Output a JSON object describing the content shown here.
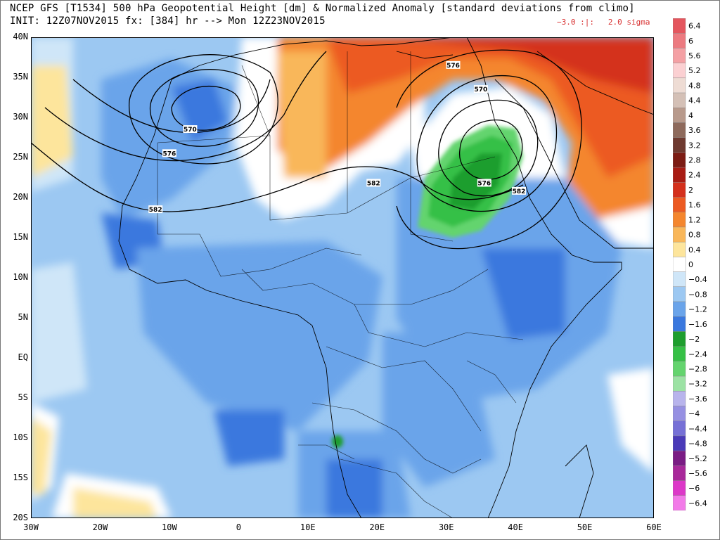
{
  "header": {
    "line1": "NCEP GFS [T1534] 500 hPa Geopotential Height [dm] & Normalized Anomaly [standard deviations from climo]",
    "line2": "INIT: 12Z07NOV2015 fx: [384] hr --> Mon 12Z23NOV2015",
    "sigma_note": "−3.0 :|:   2.0 sigma"
  },
  "axes": {
    "lat_labels": [
      "40N",
      "35N",
      "30N",
      "25N",
      "20N",
      "15N",
      "10N",
      "5N",
      "EQ",
      "5S",
      "10S",
      "15S",
      "20S"
    ],
    "lat_values": [
      40,
      35,
      30,
      25,
      20,
      15,
      10,
      5,
      0,
      -5,
      -10,
      -15,
      -20
    ],
    "lon_labels": [
      "30W",
      "20W",
      "10W",
      "0",
      "10E",
      "20E",
      "30E",
      "40E",
      "50E",
      "60E"
    ],
    "lon_values": [
      -30,
      -20,
      -10,
      0,
      10,
      20,
      30,
      40,
      50,
      60
    ]
  },
  "map_extent": {
    "lon_min": -30,
    "lon_max": 60,
    "lat_min": -20,
    "lat_max": 40
  },
  "contour_labels": [
    {
      "text": "570",
      "lon": -7,
      "lat": 28.5
    },
    {
      "text": "576",
      "lon": -10,
      "lat": 25.5
    },
    {
      "text": "582",
      "lon": -12,
      "lat": 18.5
    },
    {
      "text": "582",
      "lon": 19.5,
      "lat": 21.8
    },
    {
      "text": "576",
      "lon": 31,
      "lat": 36.5
    },
    {
      "text": "570",
      "lon": 35,
      "lat": 33.5
    },
    {
      "text": "576",
      "lon": 35.5,
      "lat": 21.8
    },
    {
      "text": "582",
      "lon": 40.5,
      "lat": 20.8
    }
  ],
  "colorbar": {
    "labels": [
      "6.4",
      "6",
      "5.6",
      "5.2",
      "4.8",
      "4.4",
      "4",
      "3.6",
      "3.2",
      "2.8",
      "2.4",
      "2",
      "1.6",
      "1.2",
      "0.8",
      "0.4",
      "0",
      "−0.4",
      "−0.8",
      "−1.2",
      "−1.6",
      "−2",
      "−2.4",
      "−2.8",
      "−3.2",
      "−3.6",
      "−4",
      "−4.4",
      "−4.8",
      "−5.2",
      "−5.6",
      "−6",
      "−6.4"
    ],
    "colors": [
      "#e4565e",
      "#ec7a80",
      "#f4a0a4",
      "#fbd0d2",
      "#eedcd4",
      "#d4c0b6",
      "#b89a8c",
      "#8e6a5c",
      "#6e3a30",
      "#7c1c14",
      "#a81c14",
      "#d4301c",
      "#ec5a22",
      "#f4862e",
      "#f9b75a",
      "#fde59c",
      "#ffffff",
      "#cfe6f8",
      "#9cc8f2",
      "#6aa4ea",
      "#3a78de",
      "#1e9e2e",
      "#36c046",
      "#64d46e",
      "#9ce2a4",
      "#b8b4ec",
      "#9690e2",
      "#7670d6",
      "#4a3ab8",
      "#7a1c84",
      "#a8289a",
      "#dc38c8",
      "#f27ae8"
    ]
  },
  "colors": {
    "blue_dark": "#3c78de",
    "blue_mid": "#6aa4ea",
    "blue_light": "#9cc8f2",
    "blue_pale": "#cfe6f8",
    "green_dark": "#1e9e2e",
    "green_mid": "#36c046",
    "green_light": "#64d46e",
    "orange": "#ec5a22",
    "orange_light": "#f4862e",
    "tan": "#f9b75a",
    "yellow": "#fde59c",
    "red": "#d4301c",
    "sigma_text": "#d83030"
  }
}
